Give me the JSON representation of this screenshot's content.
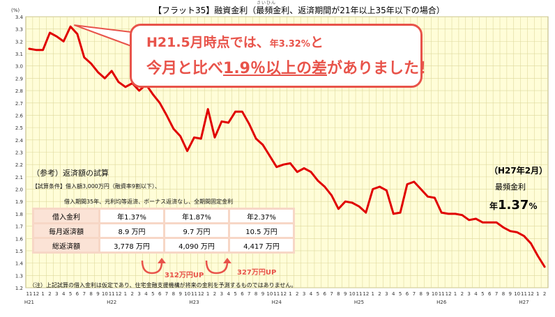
{
  "title": "【フラット35】融資金利（最頻金利、返済期間が21年以上35年以下の場合）",
  "title_ruby": "さいひん",
  "callout": {
    "line1_a": "H21.5月時点では、",
    "line1_b": "年3.32",
    "line1_c": "%",
    "line1_d": "と",
    "line2_a": "今月と比べ",
    "line2_b": "1.9％以上の差",
    "line2_c": "がありました！"
  },
  "reference": {
    "title": "（参考）返済額の試算",
    "condition1": "【試算条件】借入額3,000万円（融資率9割以下）、",
    "condition2": "借入期間35年、元利均等返済、ボーナス返済なし、全期間固定金利"
  },
  "calc_table": {
    "rows": [
      {
        "label": "借入金利",
        "values": [
          "年1.37%",
          "年1.87%",
          "年2.37%"
        ]
      },
      {
        "label": "毎月返済額",
        "values": [
          "8.9 万円",
          "9.7 万円",
          "10.5 万円"
        ]
      },
      {
        "label": "総返済額",
        "values": [
          "3,778 万円",
          "4,090 万円",
          "4,417 万円"
        ]
      }
    ],
    "diff1": "312万円UP",
    "diff2": "327万円UP"
  },
  "note": "（注）上記試算の借入金利は仮定であり、住宅金融支援機構が将来の金利を予測するものではありません。",
  "latest": {
    "date": "（H27年2月）",
    "label": "最頻金利",
    "value_prefix": "年",
    "value": "1.37",
    "value_unit": "%"
  },
  "colors": {
    "line": "#e00000",
    "plot_bg": "#fffdd8",
    "grid": "#ded99c",
    "callout_border": "#e8534a",
    "accent_text": "#e8534a"
  },
  "chart_data": {
    "type": "line",
    "title": "【フラット35】融資金利（最頻金利、返済期間が21年以上35年以下の場合）",
    "ylabel": "(%)",
    "xlabel": "",
    "ylim": [
      1.2,
      3.4
    ],
    "yticks": [
      1.2,
      1.3,
      1.4,
      1.5,
      1.6,
      1.7,
      1.8,
      1.9,
      2.0,
      2.1,
      2.2,
      2.3,
      2.4,
      2.5,
      2.6,
      2.7,
      2.8,
      2.9,
      3.0,
      3.1,
      3.2,
      3.3,
      3.4
    ],
    "ytick_labels": [
      "1.2",
      "1.3",
      "1.4",
      "1.5",
      "1.6",
      "1.7",
      "1.8",
      "1.9",
      "2.0",
      "2.1",
      "2.2",
      "2.3",
      "2.4",
      "2.5",
      "2.6",
      "2.7",
      "2.8",
      "2.9",
      "3.0",
      "3.1",
      "3.2",
      "3.3",
      "3.4"
    ],
    "x_month_labels": [
      "11",
      "12",
      "1",
      "2",
      "3",
      "4",
      "5",
      "6",
      "7",
      "8",
      "9",
      "10",
      "11",
      "12",
      "1",
      "2",
      "3",
      "4",
      "5",
      "6",
      "7",
      "8",
      "9",
      "10",
      "11",
      "12",
      "1",
      "2",
      "3",
      "4",
      "5",
      "6",
      "7",
      "8",
      "9",
      "10",
      "11",
      "12",
      "1",
      "2",
      "3",
      "4",
      "5",
      "6",
      "7",
      "8",
      "9",
      "10",
      "11",
      "12",
      "1",
      "2",
      "3",
      "4",
      "5",
      "6",
      "7",
      "8",
      "9",
      "10",
      "11",
      "12",
      "1",
      "2",
      "3",
      "4",
      "5",
      "6",
      "7",
      "8",
      "9",
      "10",
      "11",
      "12",
      "1",
      "2"
    ],
    "year_labels": [
      {
        "label": "H21",
        "month_index": 0
      },
      {
        "label": "H22",
        "month_index": 12
      },
      {
        "label": "H23",
        "month_index": 24
      },
      {
        "label": "H24",
        "month_index": 36
      },
      {
        "label": "H25",
        "month_index": 48
      },
      {
        "label": "H26",
        "month_index": 60
      },
      {
        "label": "H27",
        "month_index": 72
      }
    ],
    "grid": true,
    "series": [
      {
        "values": [
          3.14,
          3.13,
          3.13,
          3.27,
          3.24,
          3.2,
          3.32,
          3.26,
          3.07,
          3.02,
          2.95,
          2.9,
          2.96,
          2.87,
          2.83,
          2.86,
          2.8,
          2.85,
          2.77,
          2.7,
          2.6,
          2.49,
          2.43,
          2.31,
          2.42,
          2.41,
          2.65,
          2.42,
          2.55,
          2.54,
          2.63,
          2.63,
          2.53,
          2.41,
          2.36,
          2.27,
          2.18,
          2.2,
          2.21,
          2.14,
          2.17,
          2.14,
          2.07,
          2.02,
          1.95,
          1.84,
          1.9,
          1.89,
          1.86,
          1.81,
          2.0,
          2.02,
          1.99,
          1.8,
          1.81,
          2.04,
          2.06,
          2.0,
          1.94,
          1.93,
          1.81,
          1.8,
          1.8,
          1.79,
          1.75,
          1.76,
          1.73,
          1.73,
          1.73,
          1.69,
          1.66,
          1.65,
          1.62,
          1.56,
          1.46,
          1.37
        ]
      }
    ]
  }
}
